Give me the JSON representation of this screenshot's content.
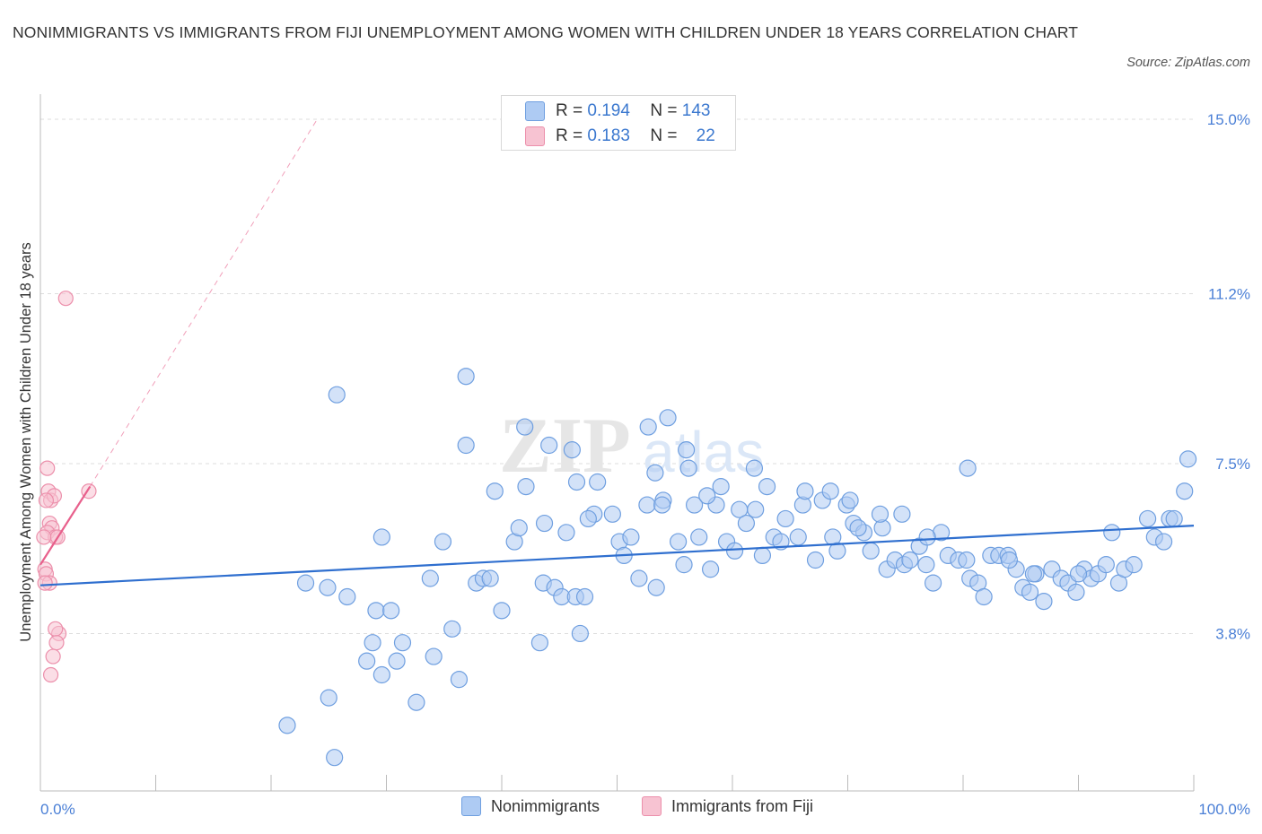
{
  "title": "NONIMMIGRANTS VS IMMIGRANTS FROM FIJI UNEMPLOYMENT AMONG WOMEN WITH CHILDREN UNDER 18 YEARS CORRELATION CHART",
  "source": "Source: ZipAtlas.com",
  "watermark": {
    "zip": "ZIP",
    "atlas": "atlas"
  },
  "colors": {
    "blue_fill": "#aecbf3",
    "blue_stroke": "#6f9fe0",
    "blue_line": "#2f6fcf",
    "pink_fill": "#f7c3d2",
    "pink_stroke": "#ec8fab",
    "pink_line": "#e8608c",
    "axis_text": "#4a7fd6",
    "grid": "#dddddd"
  },
  "legend_top": [
    {
      "r_label": "R =",
      "r_value": "0.194",
      "n_label": "N =",
      "n_value": "143",
      "swatch": "blue"
    },
    {
      "r_label": "R =",
      "r_value": "0.183",
      "n_label": "N =",
      "n_value": "22",
      "swatch": "pink"
    }
  ],
  "legend_bottom": [
    {
      "label": "Nonimmigrants",
      "swatch": "blue"
    },
    {
      "label": "Immigrants from Fiji",
      "swatch": "pink"
    }
  ],
  "chart_data": {
    "type": "scatter",
    "title": "NONIMMIGRANTS VS IMMIGRANTS FROM FIJI UNEMPLOYMENT AMONG WOMEN WITH CHILDREN UNDER 18 YEARS CORRELATION CHART",
    "xlabel": "",
    "ylabel": "Unemployment Among Women with Children Under 18 years",
    "xlim": [
      0,
      100
    ],
    "ylim": [
      0,
      15.5
    ],
    "x_tick_labels": [
      "0.0%",
      "100.0%"
    ],
    "y_ticks": [
      3.8,
      7.5,
      11.2,
      15.0
    ],
    "y_tick_labels": [
      "3.8%",
      "7.5%",
      "11.2%",
      "15.0%"
    ],
    "grid": "horizontal dashed",
    "legend_placement": "top-center and bottom",
    "series": [
      {
        "name": "Nonimmigrants",
        "r": 0.194,
        "n": 143,
        "trend": {
          "x": [
            0,
            100
          ],
          "y": [
            4.85,
            6.15
          ]
        },
        "points": [
          [
            21.4,
            1.8
          ],
          [
            25.5,
            1.1
          ],
          [
            25.0,
            2.4
          ],
          [
            28.3,
            3.2
          ],
          [
            29.6,
            2.9
          ],
          [
            30.9,
            3.2
          ],
          [
            32.6,
            2.3
          ],
          [
            34.1,
            3.3
          ],
          [
            36.3,
            2.8
          ],
          [
            28.8,
            3.6
          ],
          [
            31.4,
            3.6
          ],
          [
            35.7,
            3.9
          ],
          [
            43.3,
            3.6
          ],
          [
            46.8,
            3.8
          ],
          [
            23.0,
            4.9
          ],
          [
            24.9,
            4.8
          ],
          [
            26.6,
            4.6
          ],
          [
            29.1,
            4.3
          ],
          [
            30.4,
            4.3
          ],
          [
            33.8,
            5.0
          ],
          [
            37.8,
            4.9
          ],
          [
            38.4,
            5.0
          ],
          [
            39.0,
            5.0
          ],
          [
            40.0,
            4.3
          ],
          [
            43.6,
            4.9
          ],
          [
            44.6,
            4.8
          ],
          [
            45.2,
            4.6
          ],
          [
            46.4,
            4.6
          ],
          [
            47.2,
            4.6
          ],
          [
            51.9,
            5.0
          ],
          [
            53.4,
            4.8
          ],
          [
            29.6,
            5.9
          ],
          [
            39.4,
            6.9
          ],
          [
            41.1,
            5.8
          ],
          [
            41.5,
            6.1
          ],
          [
            42.1,
            7.0
          ],
          [
            43.7,
            6.2
          ],
          [
            45.6,
            6.0
          ],
          [
            46.5,
            7.1
          ],
          [
            48.3,
            7.1
          ],
          [
            48.0,
            6.4
          ],
          [
            49.6,
            6.4
          ],
          [
            50.2,
            5.8
          ],
          [
            50.6,
            5.5
          ],
          [
            51.2,
            5.9
          ],
          [
            52.6,
            6.6
          ],
          [
            53.3,
            7.3
          ],
          [
            54.0,
            6.7
          ],
          [
            55.3,
            5.8
          ],
          [
            55.8,
            5.3
          ],
          [
            56.7,
            6.6
          ],
          [
            57.1,
            5.9
          ],
          [
            58.1,
            5.2
          ],
          [
            58.6,
            6.6
          ],
          [
            59.5,
            5.8
          ],
          [
            60.2,
            5.6
          ],
          [
            60.6,
            6.5
          ],
          [
            61.2,
            6.2
          ],
          [
            62.0,
            6.5
          ],
          [
            62.6,
            5.5
          ],
          [
            63.6,
            5.9
          ],
          [
            64.2,
            5.8
          ],
          [
            65.7,
            5.9
          ],
          [
            66.1,
            6.6
          ],
          [
            67.2,
            5.4
          ],
          [
            67.8,
            6.7
          ],
          [
            68.7,
            5.9
          ],
          [
            69.1,
            5.6
          ],
          [
            69.9,
            6.6
          ],
          [
            70.5,
            6.2
          ],
          [
            71.4,
            6.0
          ],
          [
            72.0,
            5.6
          ],
          [
            73.0,
            6.1
          ],
          [
            73.4,
            5.2
          ],
          [
            74.1,
            5.4
          ],
          [
            74.9,
            5.3
          ],
          [
            75.4,
            5.4
          ],
          [
            76.2,
            5.7
          ],
          [
            76.8,
            5.3
          ],
          [
            77.4,
            4.9
          ],
          [
            78.1,
            6.0
          ],
          [
            78.7,
            5.5
          ],
          [
            79.6,
            5.4
          ],
          [
            80.3,
            5.4
          ],
          [
            80.6,
            5.0
          ],
          [
            81.3,
            4.9
          ],
          [
            81.8,
            4.6
          ],
          [
            82.4,
            5.5
          ],
          [
            83.1,
            5.5
          ],
          [
            83.9,
            5.5
          ],
          [
            84.6,
            5.2
          ],
          [
            85.2,
            4.8
          ],
          [
            85.8,
            4.7
          ],
          [
            86.3,
            5.1
          ],
          [
            87.0,
            4.5
          ],
          [
            87.7,
            5.2
          ],
          [
            88.5,
            5.0
          ],
          [
            89.1,
            4.9
          ],
          [
            89.8,
            4.7
          ],
          [
            90.5,
            5.2
          ],
          [
            91.1,
            5.0
          ],
          [
            91.7,
            5.1
          ],
          [
            92.4,
            5.3
          ],
          [
            92.9,
            6.0
          ],
          [
            93.5,
            4.9
          ],
          [
            94.0,
            5.2
          ],
          [
            94.8,
            5.3
          ],
          [
            96.0,
            6.3
          ],
          [
            96.6,
            5.9
          ],
          [
            97.4,
            5.8
          ],
          [
            97.9,
            6.3
          ],
          [
            98.3,
            6.3
          ],
          [
            99.2,
            6.9
          ],
          [
            99.5,
            7.6
          ],
          [
            42.0,
            8.3
          ],
          [
            44.1,
            7.9
          ],
          [
            46.1,
            7.8
          ],
          [
            52.7,
            8.3
          ],
          [
            54.4,
            8.5
          ],
          [
            56.0,
            7.8
          ],
          [
            56.2,
            7.4
          ],
          [
            61.9,
            7.4
          ],
          [
            63.0,
            7.0
          ],
          [
            66.3,
            6.9
          ],
          [
            68.5,
            6.9
          ],
          [
            70.2,
            6.7
          ],
          [
            74.7,
            6.4
          ],
          [
            80.4,
            7.4
          ],
          [
            36.9,
            7.9
          ],
          [
            47.5,
            6.3
          ],
          [
            53.9,
            6.6
          ],
          [
            57.8,
            6.8
          ],
          [
            59.0,
            7.0
          ],
          [
            64.6,
            6.3
          ],
          [
            70.9,
            6.1
          ],
          [
            72.8,
            6.4
          ],
          [
            76.9,
            5.9
          ],
          [
            84.0,
            5.4
          ],
          [
            86.1,
            5.1
          ],
          [
            90.0,
            5.1
          ],
          [
            25.7,
            9.0
          ],
          [
            36.9,
            9.4
          ],
          [
            34.9,
            5.8
          ]
        ]
      },
      {
        "name": "Immigrants from Fiji",
        "r": 0.183,
        "n": 22,
        "trend": {
          "x": [
            0,
            4.3
          ],
          "y": [
            5.3,
            7.0
          ]
        },
        "trend_extension": {
          "x": [
            4.3,
            24.0
          ],
          "y": [
            7.0,
            15.0
          ]
        },
        "points": [
          [
            2.2,
            11.1
          ],
          [
            0.6,
            7.4
          ],
          [
            0.7,
            6.9
          ],
          [
            0.9,
            6.7
          ],
          [
            1.2,
            6.8
          ],
          [
            0.5,
            6.7
          ],
          [
            0.8,
            6.2
          ],
          [
            1.0,
            6.1
          ],
          [
            0.6,
            6.0
          ],
          [
            1.3,
            5.9
          ],
          [
            0.3,
            5.9
          ],
          [
            1.5,
            5.9
          ],
          [
            0.4,
            5.2
          ],
          [
            0.5,
            5.1
          ],
          [
            0.8,
            4.9
          ],
          [
            0.4,
            4.9
          ],
          [
            1.6,
            3.8
          ],
          [
            1.3,
            3.9
          ],
          [
            1.4,
            3.6
          ],
          [
            1.1,
            3.3
          ],
          [
            0.9,
            2.9
          ],
          [
            4.2,
            6.9
          ]
        ]
      }
    ]
  }
}
